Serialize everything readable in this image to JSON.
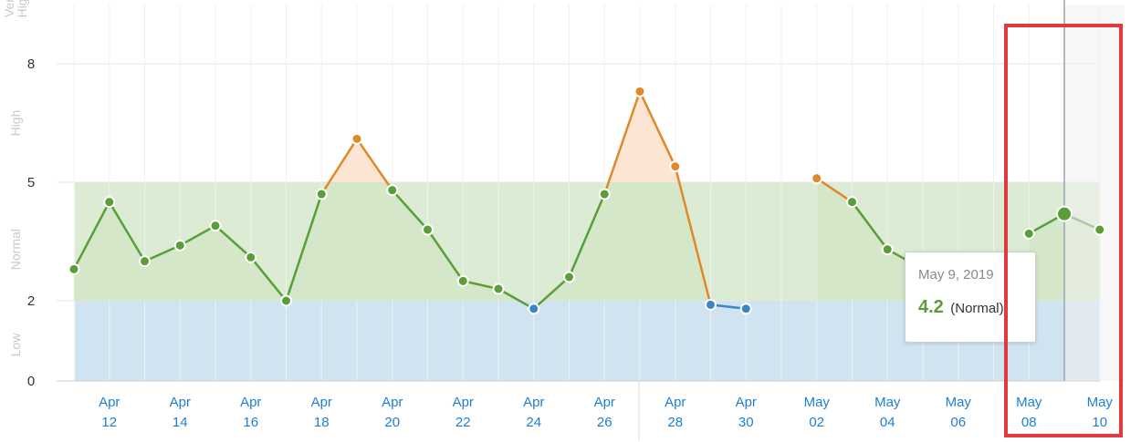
{
  "chart_data": {
    "type": "line",
    "y_ticks": [
      "0",
      "2",
      "5",
      "8"
    ],
    "ylim": [
      0,
      10
    ],
    "bands": [
      {
        "label": "Low",
        "from": 0,
        "to": 2,
        "color": "#cfe3f1"
      },
      {
        "label": "Normal",
        "from": 2,
        "to": 5,
        "color": "#dcebd3"
      },
      {
        "label": "High",
        "from": 5,
        "to": 8,
        "color": "#ffffff"
      },
      {
        "label": "Very High",
        "from": 8,
        "to": 10,
        "color": "#ffffff"
      }
    ],
    "x_labels": [
      {
        "month": "Apr",
        "day": "12"
      },
      {
        "month": "Apr",
        "day": "14"
      },
      {
        "month": "Apr",
        "day": "16"
      },
      {
        "month": "Apr",
        "day": "18"
      },
      {
        "month": "Apr",
        "day": "20"
      },
      {
        "month": "Apr",
        "day": "22"
      },
      {
        "month": "Apr",
        "day": "24"
      },
      {
        "month": "Apr",
        "day": "26"
      },
      {
        "month": "Apr",
        "day": "28"
      },
      {
        "month": "Apr",
        "day": "30"
      },
      {
        "month": "May",
        "day": "02"
      },
      {
        "month": "May",
        "day": "04"
      },
      {
        "month": "May",
        "day": "06"
      },
      {
        "month": "May",
        "day": "08"
      },
      {
        "month": "May",
        "day": "10"
      }
    ],
    "series": [
      {
        "points": [
          {
            "date": "2019-04-11",
            "value": 2.8
          },
          {
            "date": "2019-04-12",
            "value": 4.5
          },
          {
            "date": "2019-04-13",
            "value": 3.0
          },
          {
            "date": "2019-04-14",
            "value": 3.4
          },
          {
            "date": "2019-04-15",
            "value": 3.9
          },
          {
            "date": "2019-04-16",
            "value": 3.1
          },
          {
            "date": "2019-04-17",
            "value": 2.0
          },
          {
            "date": "2019-04-18",
            "value": 4.7
          },
          {
            "date": "2019-04-19",
            "value": 6.1
          },
          {
            "date": "2019-04-20",
            "value": 4.8
          },
          {
            "date": "2019-04-21",
            "value": 3.8
          },
          {
            "date": "2019-04-22",
            "value": 2.5
          },
          {
            "date": "2019-04-23",
            "value": 2.3
          },
          {
            "date": "2019-04-24",
            "value": 1.8
          },
          {
            "date": "2019-04-25",
            "value": 2.6
          },
          {
            "date": "2019-04-26",
            "value": 4.7
          },
          {
            "date": "2019-04-27",
            "value": 7.3
          },
          {
            "date": "2019-04-28",
            "value": 5.4
          },
          {
            "date": "2019-04-29",
            "value": 1.9
          },
          {
            "date": "2019-04-30",
            "value": 1.8
          },
          {
            "date": "2019-05-01",
            "value": null
          },
          {
            "date": "2019-05-02",
            "value": 5.1
          },
          {
            "date": "2019-05-03",
            "value": 4.5
          },
          {
            "date": "2019-05-04",
            "value": 3.3
          },
          {
            "date": "2019-05-05",
            "value": 2.8
          },
          {
            "date": "2019-05-06",
            "value": 2.4
          },
          {
            "date": "2019-05-07",
            "value": null
          },
          {
            "date": "2019-05-08",
            "value": 3.7
          },
          {
            "date": "2019-05-09",
            "value": 4.2
          },
          {
            "date": "2019-05-10",
            "value": 3.8
          }
        ]
      }
    ],
    "status_colors": {
      "low": "#3a86c8",
      "normal": "#5a9e3a",
      "high": "#e0892a"
    },
    "grid": true,
    "highlighted_date": "2019-05-09"
  },
  "tooltip": {
    "date": "May 9, 2019",
    "value": "4.2",
    "status": "(Normal)"
  }
}
